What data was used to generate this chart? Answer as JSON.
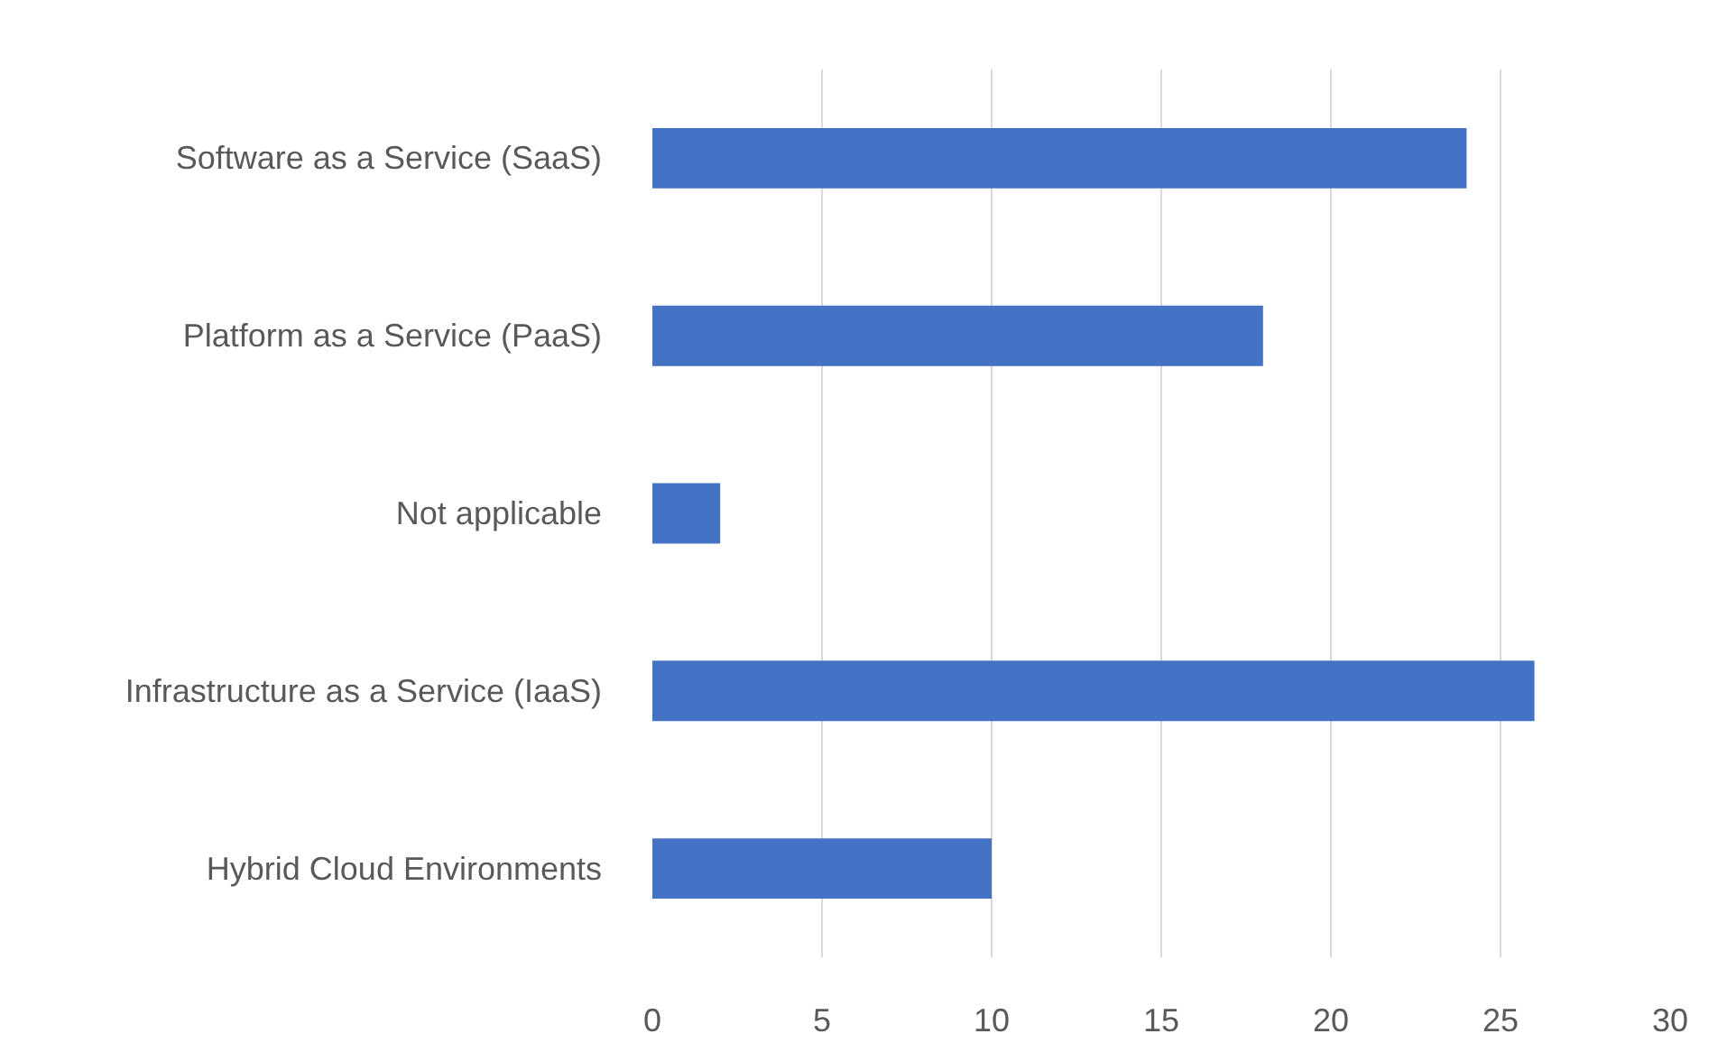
{
  "chart_data": {
    "type": "bar",
    "orientation": "horizontal",
    "categories": [
      "Software as a Service (SaaS)",
      "Platform as a Service (PaaS)",
      "Not applicable",
      "Infrastructure as a Service (IaaS)",
      "Hybrid Cloud Environments"
    ],
    "values": [
      24,
      18,
      2,
      26,
      10
    ],
    "color": "#4472c4",
    "xlim": [
      0,
      30
    ],
    "xticks": [
      0,
      5,
      10,
      15,
      20,
      25,
      30
    ],
    "grid": "x"
  }
}
